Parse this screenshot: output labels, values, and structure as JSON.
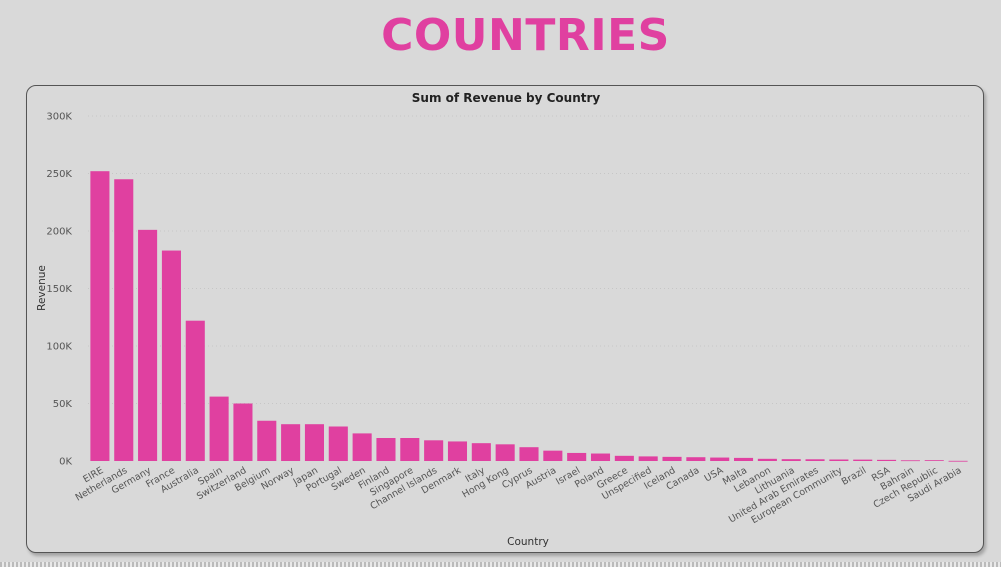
{
  "page": {
    "title": "COUNTRIES"
  },
  "chart_data": {
    "type": "bar",
    "title": "Sum of Revenue by Country",
    "xlabel": "Country",
    "ylabel": "Revenue",
    "ylim": [
      0,
      300000
    ],
    "yticks": [
      0,
      50000,
      100000,
      150000,
      200000,
      250000,
      300000
    ],
    "ytick_labels": [
      "0K",
      "50K",
      "100K",
      "150K",
      "200K",
      "250K",
      "300K"
    ],
    "grid": true,
    "bar_color": "#e040a0",
    "categories": [
      "EIRE",
      "Netherlands",
      "Germany",
      "France",
      "Australia",
      "Spain",
      "Switzerland",
      "Belgium",
      "Norway",
      "Japan",
      "Portugal",
      "Sweden",
      "Finland",
      "Singapore",
      "Channel Islands",
      "Denmark",
      "Italy",
      "Hong Kong",
      "Cyprus",
      "Austria",
      "Israel",
      "Poland",
      "Greece",
      "Unspecified",
      "Iceland",
      "Canada",
      "USA",
      "Malta",
      "Lebanon",
      "Lithuania",
      "United Arab Emirates",
      "European Community",
      "Brazil",
      "RSA",
      "Bahrain",
      "Czech Republic",
      "Saudi Arabia"
    ],
    "values": [
      252000,
      245000,
      201000,
      183000,
      122000,
      56000,
      50000,
      35000,
      32000,
      32000,
      30000,
      24000,
      20000,
      20000,
      18000,
      17000,
      15500,
      14500,
      12000,
      9000,
      7000,
      6500,
      4500,
      4000,
      3600,
      3300,
      3000,
      2700,
      1900,
      1600,
      1500,
      1300,
      1200,
      1000,
      600,
      700,
      150
    ]
  }
}
